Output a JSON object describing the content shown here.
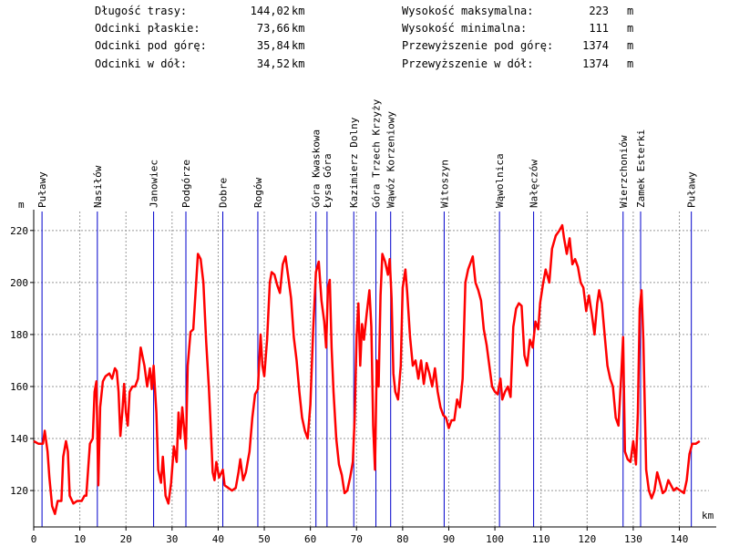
{
  "stats": {
    "left": [
      {
        "label": "Długość trasy:",
        "value": "144,02",
        "unit": "km"
      },
      {
        "label": "Odcinki płaskie:",
        "value": "73,66",
        "unit": "km"
      },
      {
        "label": "Odcinki pod górę:",
        "value": "35,84",
        "unit": "km"
      },
      {
        "label": "Odcinki w dół:",
        "value": "34,52",
        "unit": "km"
      }
    ],
    "right": [
      {
        "label": "Wysokość maksymalna:",
        "value": "223",
        "unit": "m"
      },
      {
        "label": "Wysokość minimalna:",
        "value": "111",
        "unit": "m"
      },
      {
        "label": "Przewyższenie pod górę:",
        "value": "1374",
        "unit": "m"
      },
      {
        "label": "Przewyższenie w dół:",
        "value": "1374",
        "unit": "m"
      }
    ]
  },
  "chart_data": {
    "type": "line",
    "xlabel": "km",
    "ylabel": "m",
    "xlim": [
      0,
      148
    ],
    "ylim": [
      106,
      228
    ],
    "xticks": [
      0,
      10,
      20,
      30,
      40,
      50,
      60,
      70,
      80,
      90,
      100,
      110,
      120,
      130,
      140
    ],
    "yticks": [
      120,
      140,
      160,
      180,
      200,
      220
    ],
    "grid": true,
    "line_color": "#ff0000",
    "marker_color": "#0000cc",
    "places": [
      {
        "name": "Puławy",
        "km": 1.8
      },
      {
        "name": "Nasiłów",
        "km": 13.8
      },
      {
        "name": "Janowiec",
        "km": 26.0
      },
      {
        "name": "Podgórze",
        "km": 33.0
      },
      {
        "name": "Dobre",
        "km": 41.0
      },
      {
        "name": "Rogów",
        "km": 48.6
      },
      {
        "name": "Góra Kwaskowa",
        "km": 61.2
      },
      {
        "name": "Łysa Góra",
        "km": 63.6
      },
      {
        "name": "Kazimierz Dolny",
        "km": 69.4
      },
      {
        "name": "Góra Trzech Krzyży",
        "km": 74.2
      },
      {
        "name": "Wąwóz Korzeniowy",
        "km": 77.4
      },
      {
        "name": "Witoszyn",
        "km": 89.0
      },
      {
        "name": "Wąwolnica",
        "km": 101.0
      },
      {
        "name": "Nałęczów",
        "km": 108.4
      },
      {
        "name": "Wierzchoniów",
        "km": 127.8
      },
      {
        "name": "Zamek Esterki",
        "km": 131.6
      },
      {
        "name": "Puławy",
        "km": 142.6
      }
    ],
    "profile": [
      [
        0,
        139
      ],
      [
        1,
        138
      ],
      [
        2,
        138
      ],
      [
        2.4,
        143
      ],
      [
        3,
        135
      ],
      [
        3.4,
        125
      ],
      [
        4,
        114
      ],
      [
        4.6,
        111
      ],
      [
        5.2,
        116
      ],
      [
        6,
        116
      ],
      [
        6.4,
        133
      ],
      [
        7,
        139
      ],
      [
        7.4,
        135
      ],
      [
        7.8,
        118
      ],
      [
        8.6,
        115
      ],
      [
        9.4,
        116
      ],
      [
        10.4,
        116
      ],
      [
        11,
        118
      ],
      [
        11.4,
        118
      ],
      [
        11.8,
        128
      ],
      [
        12.2,
        138
      ],
      [
        12.8,
        140
      ],
      [
        13.2,
        158
      ],
      [
        13.6,
        162
      ],
      [
        14,
        122
      ],
      [
        14.4,
        152
      ],
      [
        15,
        162
      ],
      [
        15.6,
        164
      ],
      [
        16.4,
        165
      ],
      [
        17,
        163
      ],
      [
        17.6,
        167
      ],
      [
        18,
        166
      ],
      [
        18.4,
        158
      ],
      [
        18.8,
        141
      ],
      [
        19.2,
        150
      ],
      [
        19.6,
        161
      ],
      [
        20,
        150
      ],
      [
        20.4,
        145
      ],
      [
        20.8,
        158
      ],
      [
        21.4,
        160
      ],
      [
        22,
        160
      ],
      [
        22.6,
        163
      ],
      [
        23.2,
        175
      ],
      [
        24,
        168
      ],
      [
        24.6,
        160
      ],
      [
        25.2,
        167
      ],
      [
        25.6,
        159
      ],
      [
        26,
        168
      ],
      [
        26.6,
        150
      ],
      [
        27,
        128
      ],
      [
        27.6,
        123
      ],
      [
        28,
        133
      ],
      [
        28.6,
        118
      ],
      [
        29.2,
        115
      ],
      [
        29.8,
        123
      ],
      [
        30.4,
        137
      ],
      [
        31,
        131
      ],
      [
        31.4,
        150
      ],
      [
        31.8,
        140
      ],
      [
        32.2,
        152
      ],
      [
        32.6,
        144
      ],
      [
        33,
        136
      ],
      [
        33.4,
        168
      ],
      [
        34,
        181
      ],
      [
        34.6,
        182
      ],
      [
        35.2,
        199
      ],
      [
        35.6,
        211
      ],
      [
        36.2,
        209
      ],
      [
        36.8,
        200
      ],
      [
        37.4,
        177
      ],
      [
        38,
        159
      ],
      [
        38.4,
        144
      ],
      [
        38.8,
        127
      ],
      [
        39.2,
        124
      ],
      [
        39.6,
        131
      ],
      [
        40.2,
        125
      ],
      [
        41,
        128
      ],
      [
        41.4,
        122
      ],
      [
        42.2,
        121
      ],
      [
        43,
        120
      ],
      [
        43.8,
        121
      ],
      [
        44.4,
        127
      ],
      [
        44.8,
        132
      ],
      [
        45.4,
        124
      ],
      [
        46,
        127
      ],
      [
        46.8,
        135
      ],
      [
        47.4,
        148
      ],
      [
        48,
        157
      ],
      [
        48.6,
        159
      ],
      [
        49.2,
        180
      ],
      [
        49.6,
        168
      ],
      [
        50,
        164
      ],
      [
        50.6,
        178
      ],
      [
        51.2,
        200
      ],
      [
        51.6,
        204
      ],
      [
        52.2,
        203
      ],
      [
        52.8,
        199
      ],
      [
        53.4,
        196
      ],
      [
        54,
        207
      ],
      [
        54.6,
        210
      ],
      [
        55.2,
        202
      ],
      [
        55.8,
        194
      ],
      [
        56.4,
        179
      ],
      [
        57,
        170
      ],
      [
        57.6,
        158
      ],
      [
        58.2,
        148
      ],
      [
        58.8,
        143
      ],
      [
        59.4,
        140
      ],
      [
        60,
        153
      ],
      [
        60.6,
        182
      ],
      [
        61.2,
        204
      ],
      [
        61.8,
        208
      ],
      [
        62.4,
        193
      ],
      [
        63,
        185
      ],
      [
        63.4,
        175
      ],
      [
        63.8,
        198
      ],
      [
        64.2,
        201
      ],
      [
        64.6,
        175
      ],
      [
        65,
        158
      ],
      [
        65.6,
        140
      ],
      [
        66.2,
        130
      ],
      [
        66.8,
        126
      ],
      [
        67.4,
        119
      ],
      [
        68,
        120
      ],
      [
        68.6,
        125
      ],
      [
        69.2,
        131
      ],
      [
        69.6,
        148
      ],
      [
        70,
        179
      ],
      [
        70.4,
        192
      ],
      [
        70.8,
        168
      ],
      [
        71.2,
        184
      ],
      [
        71.6,
        178
      ],
      [
        72.2,
        188
      ],
      [
        72.8,
        197
      ],
      [
        73.2,
        183
      ],
      [
        73.6,
        145
      ],
      [
        74,
        128
      ],
      [
        74.4,
        170
      ],
      [
        74.8,
        160
      ],
      [
        75.2,
        195
      ],
      [
        75.6,
        211
      ],
      [
        76.2,
        208
      ],
      [
        76.8,
        203
      ],
      [
        77.2,
        209
      ],
      [
        77.6,
        194
      ],
      [
        78,
        165
      ],
      [
        78.4,
        158
      ],
      [
        79,
        155
      ],
      [
        79.6,
        168
      ],
      [
        80,
        198
      ],
      [
        80.6,
        205
      ],
      [
        81,
        196
      ],
      [
        81.6,
        179
      ],
      [
        82.2,
        168
      ],
      [
        82.8,
        170
      ],
      [
        83.4,
        163
      ],
      [
        84,
        170
      ],
      [
        84.6,
        161
      ],
      [
        85.2,
        169
      ],
      [
        85.8,
        165
      ],
      [
        86.4,
        160
      ],
      [
        87,
        167
      ],
      [
        87.6,
        158
      ],
      [
        88.2,
        152
      ],
      [
        88.8,
        149
      ],
      [
        89.4,
        148
      ],
      [
        90,
        144
      ],
      [
        90.6,
        147
      ],
      [
        91.2,
        147
      ],
      [
        91.8,
        155
      ],
      [
        92.4,
        152
      ],
      [
        93,
        163
      ],
      [
        93.6,
        200
      ],
      [
        94.2,
        205
      ],
      [
        94.8,
        208
      ],
      [
        95.2,
        210
      ],
      [
        95.8,
        200
      ],
      [
        96.4,
        197
      ],
      [
        97,
        193
      ],
      [
        97.6,
        182
      ],
      [
        98.2,
        176
      ],
      [
        98.8,
        168
      ],
      [
        99.4,
        160
      ],
      [
        100,
        158
      ],
      [
        100.6,
        157
      ],
      [
        101.2,
        163
      ],
      [
        101.6,
        155
      ],
      [
        102.2,
        158
      ],
      [
        102.8,
        160
      ],
      [
        103.4,
        156
      ],
      [
        104,
        183
      ],
      [
        104.6,
        190
      ],
      [
        105.2,
        192
      ],
      [
        105.8,
        191
      ],
      [
        106.4,
        172
      ],
      [
        107,
        168
      ],
      [
        107.6,
        178
      ],
      [
        108.2,
        175
      ],
      [
        108.8,
        185
      ],
      [
        109.4,
        182
      ],
      [
        109.8,
        192
      ],
      [
        110.4,
        199
      ],
      [
        111,
        205
      ],
      [
        111.8,
        200
      ],
      [
        112.4,
        213
      ],
      [
        113.2,
        218
      ],
      [
        114,
        220
      ],
      [
        114.6,
        222
      ],
      [
        115,
        217
      ],
      [
        115.6,
        211
      ],
      [
        116.2,
        217
      ],
      [
        116.8,
        207
      ],
      [
        117.4,
        209
      ],
      [
        118,
        206
      ],
      [
        118.6,
        200
      ],
      [
        119.2,
        198
      ],
      [
        119.8,
        189
      ],
      [
        120.4,
        195
      ],
      [
        121,
        188
      ],
      [
        121.6,
        180
      ],
      [
        122.2,
        192
      ],
      [
        122.6,
        197
      ],
      [
        123.2,
        192
      ],
      [
        123.8,
        180
      ],
      [
        124.4,
        168
      ],
      [
        125,
        163
      ],
      [
        125.6,
        160
      ],
      [
        126.2,
        148
      ],
      [
        126.8,
        145
      ],
      [
        127.4,
        164
      ],
      [
        127.8,
        179
      ],
      [
        128.2,
        135
      ],
      [
        128.8,
        132
      ],
      [
        129.4,
        131
      ],
      [
        130,
        139
      ],
      [
        130.6,
        130
      ],
      [
        131,
        150
      ],
      [
        131.4,
        190
      ],
      [
        131.8,
        197
      ],
      [
        132.2,
        178
      ],
      [
        132.8,
        128
      ],
      [
        133.4,
        120
      ],
      [
        134,
        117
      ],
      [
        134.6,
        120
      ],
      [
        135.2,
        127
      ],
      [
        135.8,
        123
      ],
      [
        136.4,
        119
      ],
      [
        137,
        120
      ],
      [
        137.6,
        124
      ],
      [
        138.2,
        122
      ],
      [
        138.8,
        120
      ],
      [
        139.4,
        121
      ],
      [
        140.2,
        120
      ],
      [
        141,
        119
      ],
      [
        141.6,
        124
      ],
      [
        142.2,
        134
      ],
      [
        142.8,
        138
      ],
      [
        143.6,
        138
      ],
      [
        144.4,
        139
      ]
    ]
  }
}
